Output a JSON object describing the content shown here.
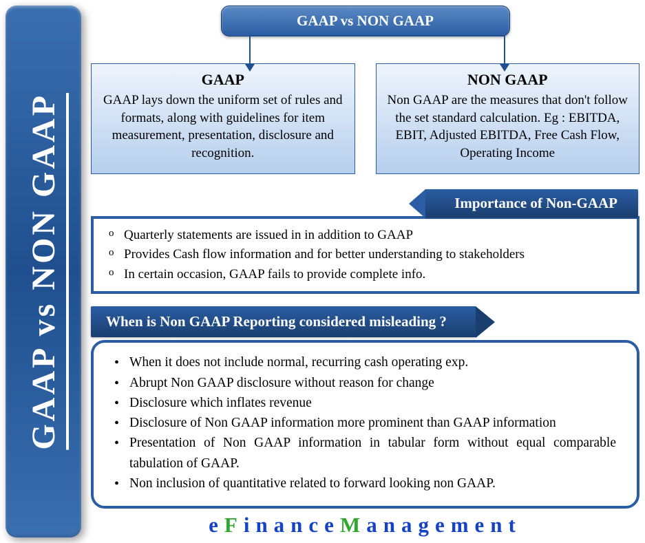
{
  "colors": {
    "primary_blue": "#2a5da3",
    "dark_blue": "#1a3f6f",
    "light_gradient_top": "#eef4fc",
    "light_gradient_bottom": "#b6cfed",
    "sidebar_gradient_mid": "#1f4f8f",
    "text_black": "#000000",
    "white": "#ffffff",
    "footer_blue": "#1443c6",
    "footer_green": "#2fa82f"
  },
  "sidebar_title": "GAAP vs NON GAAP",
  "top_title": "GAAP  vs NON GAAP",
  "box_left": {
    "title": "GAAP",
    "text": "GAAP lays down the uniform set of rules and formats, along with guidelines for item measurement, presentation, disclosure and recognition."
  },
  "box_right": {
    "title": "NON GAAP",
    "text": "Non GAAP are the measures that don't follow the set standard calculation. Eg : EBITDA, EBIT, Adjusted EBITDA, Free Cash Flow, Operating Income"
  },
  "importance_tag": "Importance of Non-GAAP",
  "importance_items": [
    "Quarterly statements are issued in in addition to GAAP",
    "Provides Cash flow information and for better understanding to stakeholders",
    "In certain occasion, GAAP fails to provide complete info."
  ],
  "misleading_tag": "When is Non GAAP Reporting considered misleading ?",
  "misleading_items": [
    "When it does not include normal, recurring cash operating exp.",
    "Abrupt Non GAAP disclosure without reason for change",
    "Disclosure which inflates revenue",
    "Disclosure of Non GAAP information more prominent than GAAP information",
    "Presentation of Non GAAP information in tabular form without equal comparable tabulation of GAAP.",
    "Non inclusion of quantitative related to forward looking non GAAP."
  ],
  "footer_brand": {
    "e": "e",
    "f": "F",
    "inance": "inance",
    "m": "M",
    "anagement": "anagement"
  }
}
